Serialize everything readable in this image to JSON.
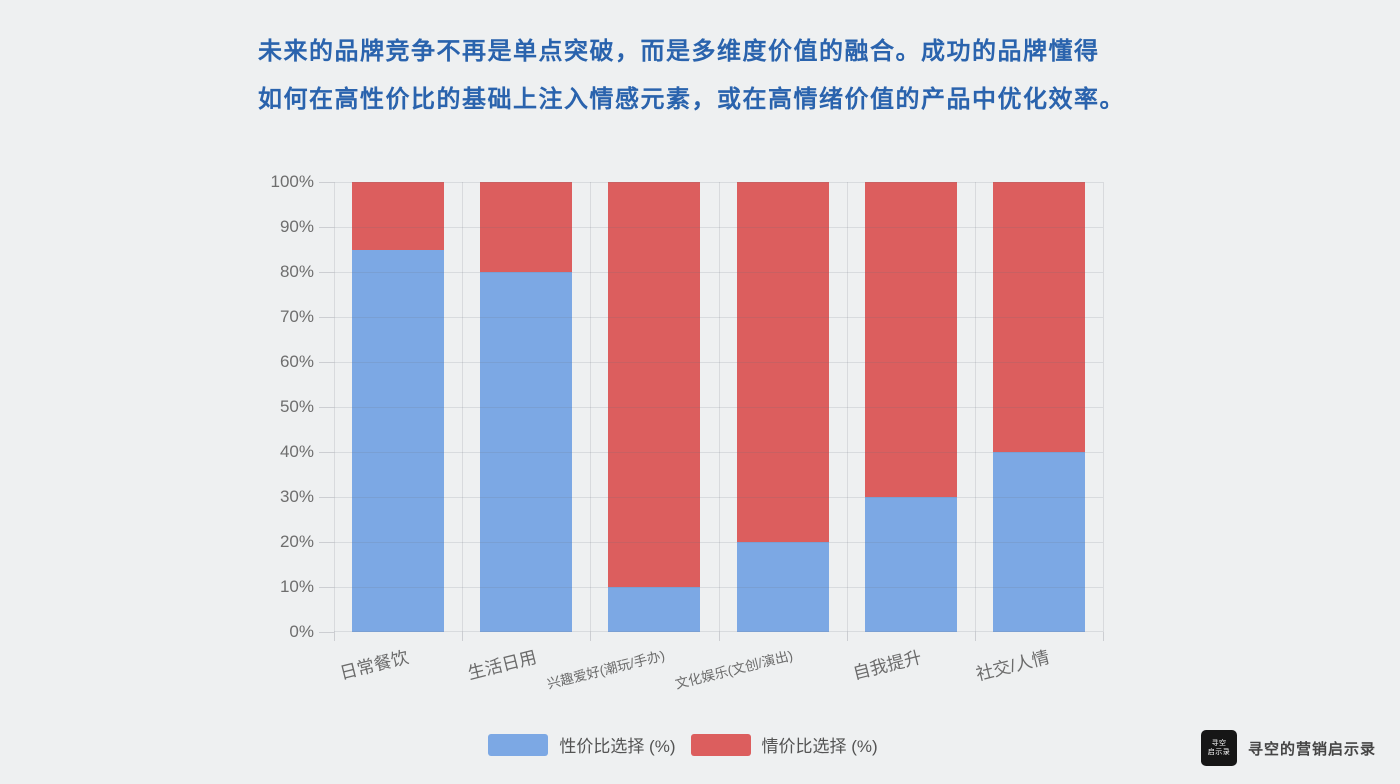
{
  "page": {
    "background_color": "#eef0f1"
  },
  "title": {
    "line1": "未来的品牌竞争不再是单点突破，而是多维度价值的融合。成功的品牌懂得",
    "line2": "如何在高性价比的基础上注入情感元素，或在高情绪价值的产品中优化效率。",
    "color": "#2a63ad"
  },
  "chart_data": {
    "type": "bar",
    "stacked": true,
    "percent_stacked": true,
    "title": "",
    "xlabel": "",
    "ylabel": "",
    "categories": [
      "日常餐饮",
      "生活日用",
      "兴趣爱好(潮玩/手办)",
      "文化娱乐(文创/演出)",
      "自我提升",
      "社交/人情"
    ],
    "series": [
      {
        "name": "性价比选择 (%)",
        "color": "#7ca8e4",
        "values": [
          85,
          80,
          10,
          20,
          30,
          40
        ]
      },
      {
        "name": "情价比选择 (%)",
        "color": "#dc5e5e",
        "values": [
          15,
          20,
          90,
          80,
          70,
          60
        ]
      }
    ],
    "ylim": [
      0,
      100
    ],
    "y_tick_step": 10,
    "y_tick_suffix": "%",
    "y_tick_labels": [
      "0%",
      "10%",
      "20%",
      "30%",
      "40%",
      "50%",
      "60%",
      "70%",
      "80%",
      "90%",
      "100%"
    ],
    "grid": true,
    "legend_position": "bottom-center",
    "x_label_rotation_deg": -14
  },
  "footer": {
    "logo_text_line1": "寻空",
    "logo_text_line2": "启示录",
    "brand": "寻空的营销启示录"
  }
}
